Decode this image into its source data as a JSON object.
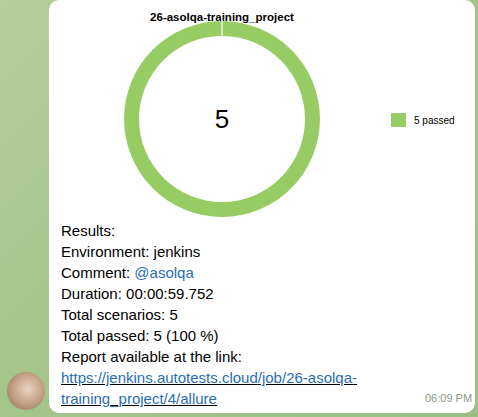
{
  "chart_data": {
    "type": "pie",
    "title": "26-asolqa-training_project",
    "categories": [
      "5 passed"
    ],
    "values": [
      5
    ],
    "colors": [
      "#97cc64"
    ],
    "data_labels": true,
    "legend": "right"
  },
  "message": {
    "heading": "Results:",
    "fields": [
      {
        "label": "Environment:",
        "value": "jenkins"
      },
      {
        "label": "Comment:",
        "value": "@asolqa"
      },
      {
        "label": "Duration:",
        "value": "00:00:59.752"
      },
      {
        "label": "Total scenarios:",
        "value": "5"
      },
      {
        "label": "Total passed:",
        "value": "5 (100 %)"
      }
    ],
    "link_caption": "Report available at the link:",
    "link": "https://jenkins.autotests.cloud/job/26-asolqa-training_project/4/allure",
    "time": "06:09 PM"
  }
}
